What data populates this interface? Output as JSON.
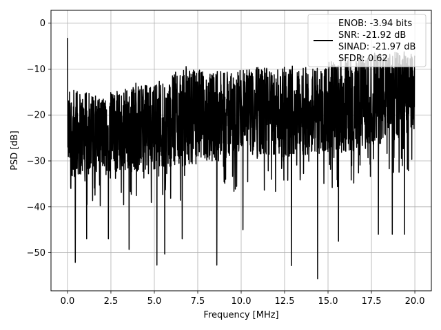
{
  "chart_data": {
    "type": "line",
    "title": "",
    "xlabel": "Frequency [MHz]",
    "ylabel": "PSD [dB]",
    "xlim": [
      -0.95,
      20.95
    ],
    "ylim": [
      -58.3,
      2.8
    ],
    "xticks": [
      0.0,
      2.5,
      5.0,
      7.5,
      10.0,
      12.5,
      15.0,
      17.5,
      20.0
    ],
    "xtick_labels": [
      "0.0",
      "2.5",
      "5.0",
      "7.5",
      "10.0",
      "12.5",
      "15.0",
      "17.5",
      "20.0"
    ],
    "yticks": [
      0,
      -10,
      -20,
      -30,
      -40,
      -50
    ],
    "ytick_labels": [
      "0",
      "−10",
      "−20",
      "−30",
      "−40",
      "−50"
    ],
    "grid": true,
    "legend_position": "top-right",
    "series": [
      {
        "color": "#000000",
        "x_start": 0.0,
        "x_end": 20.0,
        "num_points": 2048,
        "values_description": "noisy PSD trace, mostly -35 to -15 dB, peak near x=0",
        "peak": [
          0.0,
          -3.2
        ],
        "min_point": [
          14.4,
          -55.7
        ],
        "dips": [
          [
            0.45,
            -52.1
          ],
          [
            1.1,
            -47
          ],
          [
            2.35,
            -47
          ],
          [
            3.55,
            -49.3
          ],
          [
            5.15,
            -52.7
          ],
          [
            5.6,
            -50.3
          ],
          [
            6.6,
            -47
          ],
          [
            8.6,
            -52.7
          ],
          [
            10.1,
            -45
          ],
          [
            12.9,
            -52.8
          ],
          [
            14.4,
            -55.7
          ],
          [
            15.6,
            -47.5
          ],
          [
            17.9,
            -46
          ],
          [
            18.7,
            -46
          ],
          [
            19.4,
            -46
          ]
        ],
        "upper_envelope": [
          [
            0.5,
            -14
          ],
          [
            1.5,
            -15
          ],
          [
            2.5,
            -15
          ],
          [
            3.5,
            -13
          ],
          [
            4.5,
            -13
          ],
          [
            5.5,
            -11.5
          ],
          [
            6.5,
            -10
          ],
          [
            7.0,
            -9
          ],
          [
            8.0,
            -10
          ],
          [
            9.0,
            -10
          ],
          [
            10.0,
            -10
          ],
          [
            11.0,
            -9
          ],
          [
            12.0,
            -9.5
          ],
          [
            13.0,
            -9
          ],
          [
            14.0,
            -9.5
          ],
          [
            15.0,
            -8
          ],
          [
            16.0,
            -7
          ],
          [
            17.0,
            -7
          ],
          [
            18.0,
            -6
          ],
          [
            19.0,
            -6
          ],
          [
            20.0,
            -6
          ]
        ],
        "lower_envelope": [
          [
            0.5,
            -34
          ],
          [
            2.0,
            -33
          ],
          [
            4.0,
            -33
          ],
          [
            6.0,
            -32
          ],
          [
            8.0,
            -31
          ],
          [
            10.0,
            -30
          ],
          [
            12.0,
            -30
          ],
          [
            14.0,
            -29
          ],
          [
            16.0,
            -29
          ],
          [
            18.0,
            -27
          ],
          [
            20.0,
            -25
          ]
        ]
      }
    ],
    "legend_lines": [
      "ENOB: -3.94 bits",
      "SNR: -21.92 dB",
      "SINAD: -21.97 dB",
      "SFDR: 0.62"
    ]
  }
}
